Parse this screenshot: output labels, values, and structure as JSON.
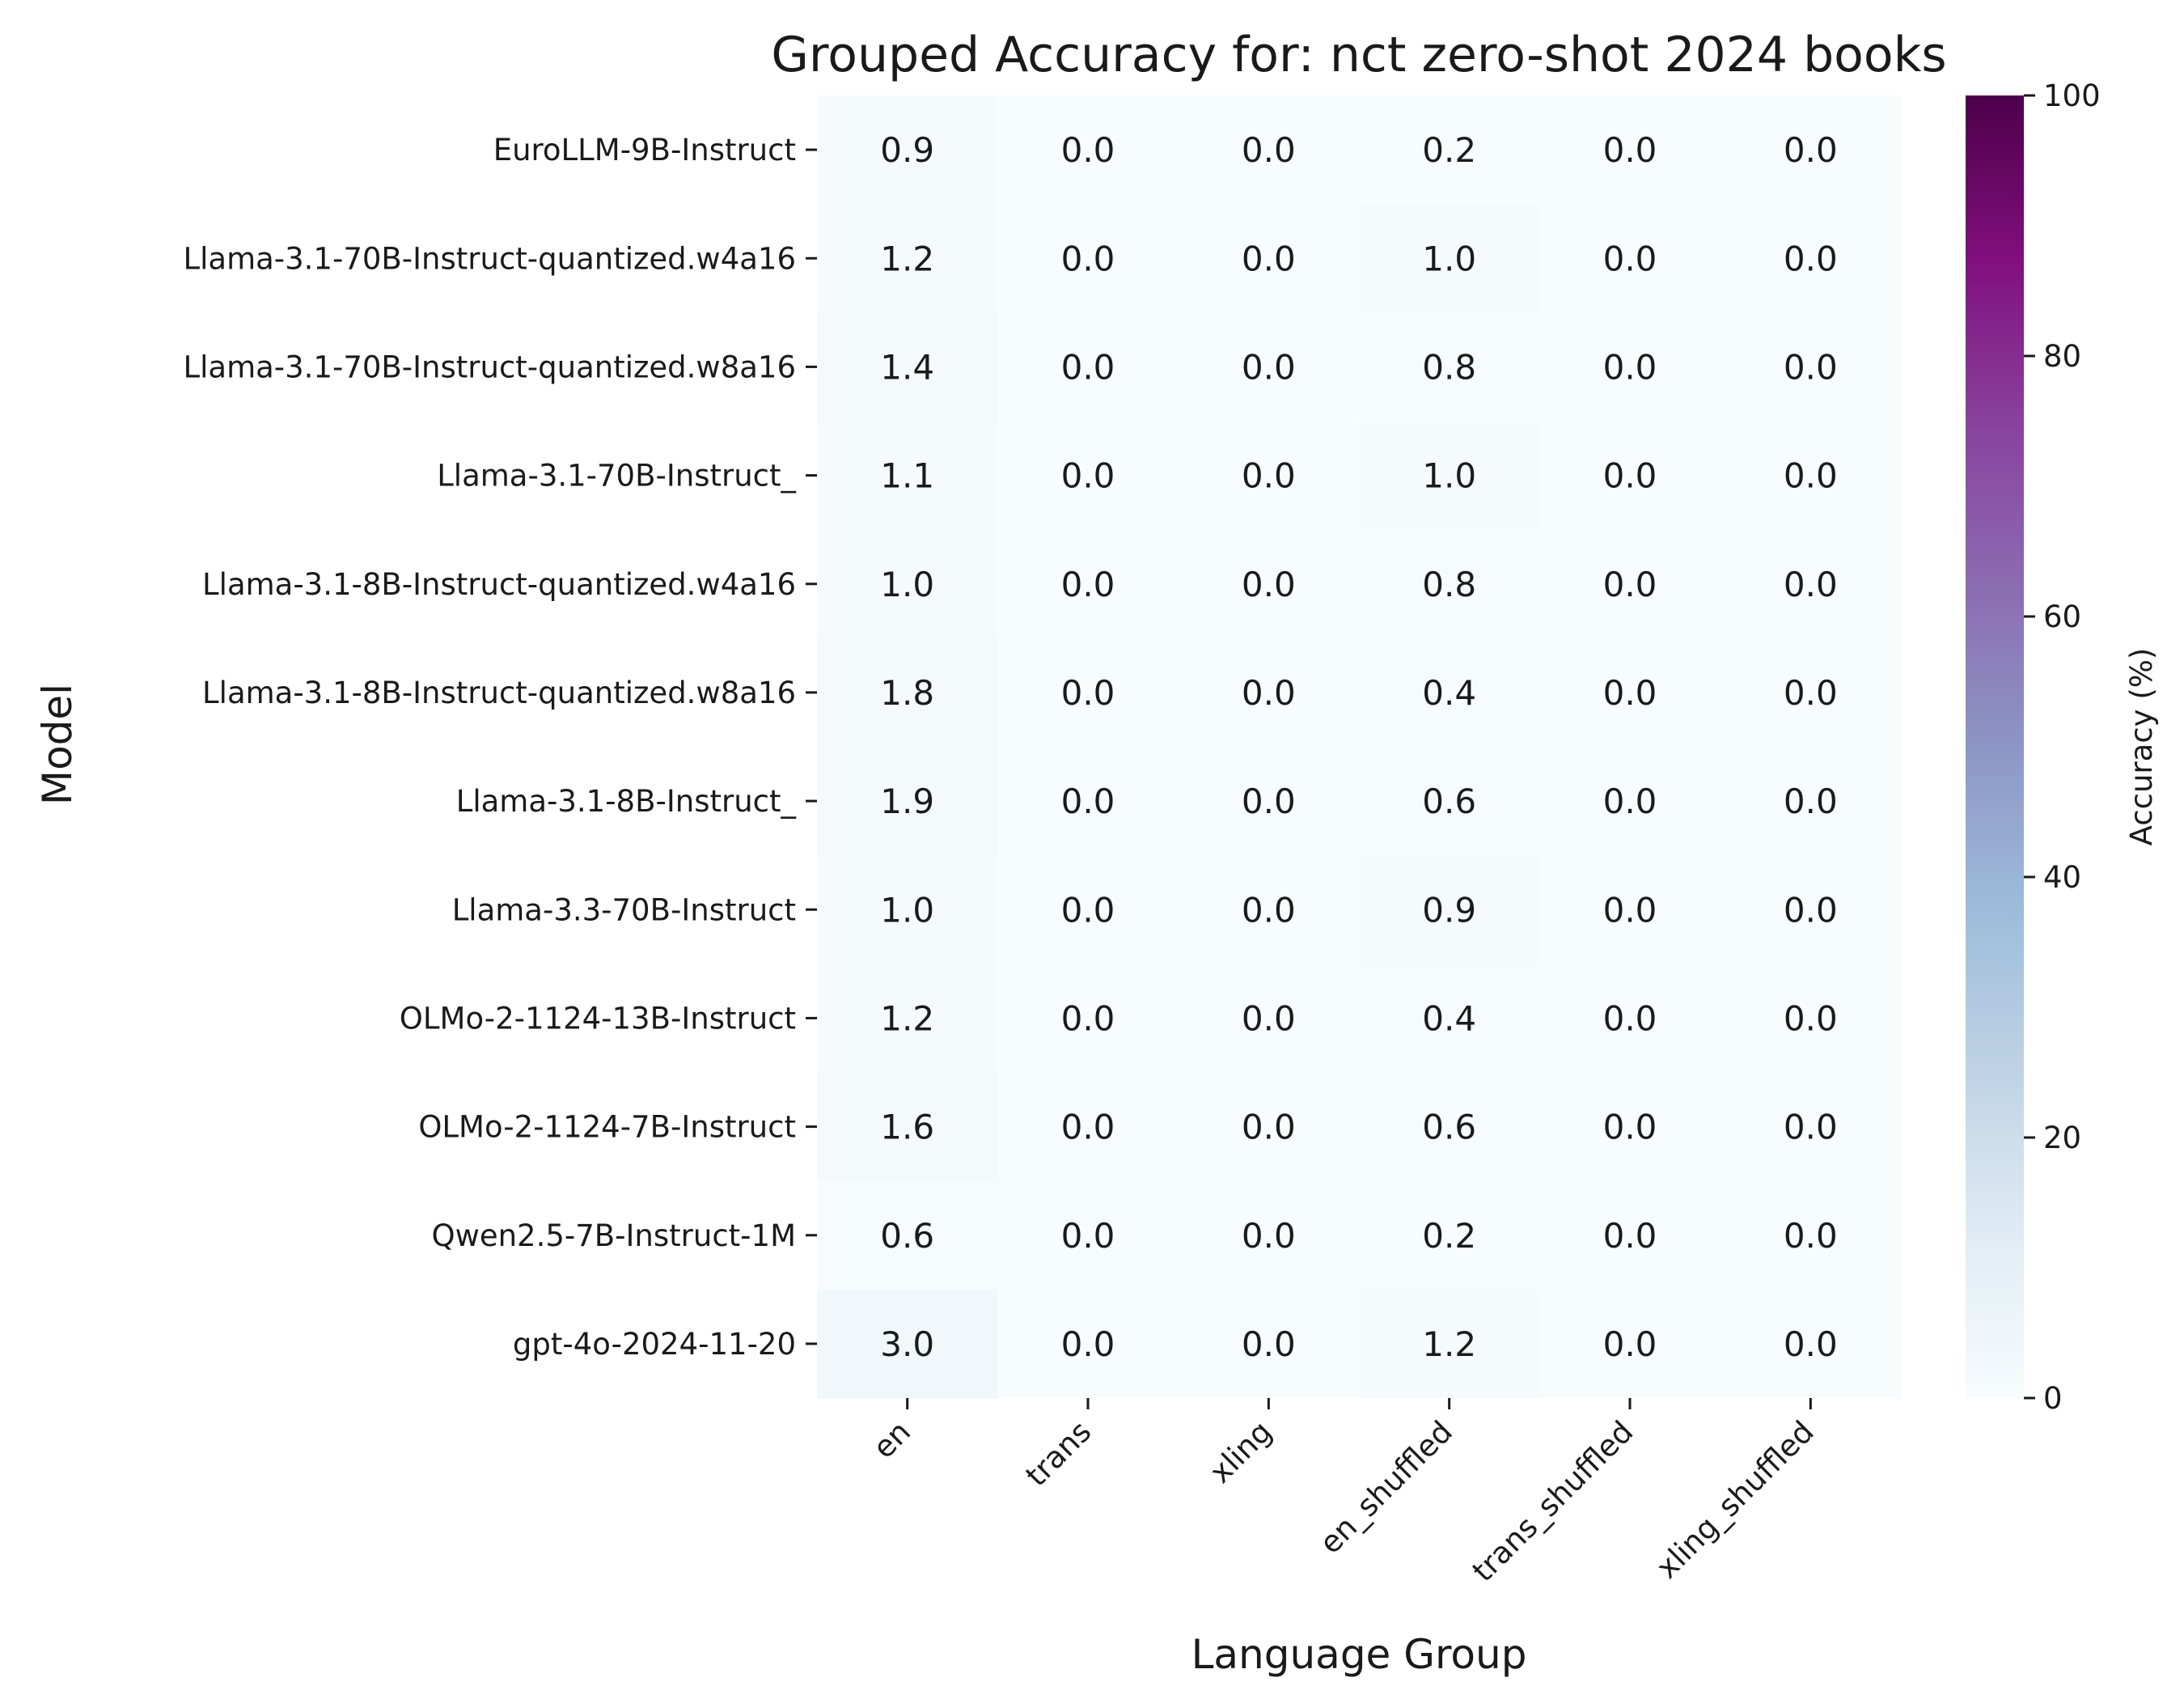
{
  "chart_data": {
    "type": "heatmap",
    "title": "Grouped Accuracy for: nct zero-shot 2024 books",
    "xlabel": "Language Group",
    "ylabel": "Model",
    "x_categories": [
      "en",
      "trans",
      "xling",
      "en_shuffled",
      "trans_shuffled",
      "xling_shuffled"
    ],
    "y_categories": [
      "EuroLLM-9B-Instruct",
      "Llama-3.1-70B-Instruct-quantized.w4a16",
      "Llama-3.1-70B-Instruct-quantized.w8a16",
      "Llama-3.1-70B-Instruct_",
      "Llama-3.1-8B-Instruct-quantized.w4a16",
      "Llama-3.1-8B-Instruct-quantized.w8a16",
      "Llama-3.1-8B-Instruct_",
      "Llama-3.3-70B-Instruct",
      "OLMo-2-1124-13B-Instruct",
      "OLMo-2-1124-7B-Instruct",
      "Qwen2.5-7B-Instruct-1M",
      "gpt-4o-2024-11-20"
    ],
    "values": [
      [
        0.9,
        0.0,
        0.0,
        0.2,
        0.0,
        0.0
      ],
      [
        1.2,
        0.0,
        0.0,
        1.0,
        0.0,
        0.0
      ],
      [
        1.4,
        0.0,
        0.0,
        0.8,
        0.0,
        0.0
      ],
      [
        1.1,
        0.0,
        0.0,
        1.0,
        0.0,
        0.0
      ],
      [
        1.0,
        0.0,
        0.0,
        0.8,
        0.0,
        0.0
      ],
      [
        1.8,
        0.0,
        0.0,
        0.4,
        0.0,
        0.0
      ],
      [
        1.9,
        0.0,
        0.0,
        0.6,
        0.0,
        0.0
      ],
      [
        1.0,
        0.0,
        0.0,
        0.9,
        0.0,
        0.0
      ],
      [
        1.2,
        0.0,
        0.0,
        0.4,
        0.0,
        0.0
      ],
      [
        1.6,
        0.0,
        0.0,
        0.6,
        0.0,
        0.0
      ],
      [
        0.6,
        0.0,
        0.0,
        0.2,
        0.0,
        0.0
      ],
      [
        3.0,
        0.0,
        0.0,
        1.2,
        0.0,
        0.0
      ]
    ],
    "value_format": "0.1f",
    "colorbar": {
      "label": "Accuracy (%)",
      "range": [
        0,
        100
      ],
      "ticks": [
        0,
        20,
        40,
        60,
        80,
        100
      ],
      "colormap": "BuPu",
      "colormap_stops": [
        "#f7fcfd",
        "#e0ecf4",
        "#bfd3e6",
        "#9ebcda",
        "#8c96c6",
        "#8c6bb1",
        "#88419d",
        "#810f7c",
        "#4d004b"
      ]
    }
  }
}
